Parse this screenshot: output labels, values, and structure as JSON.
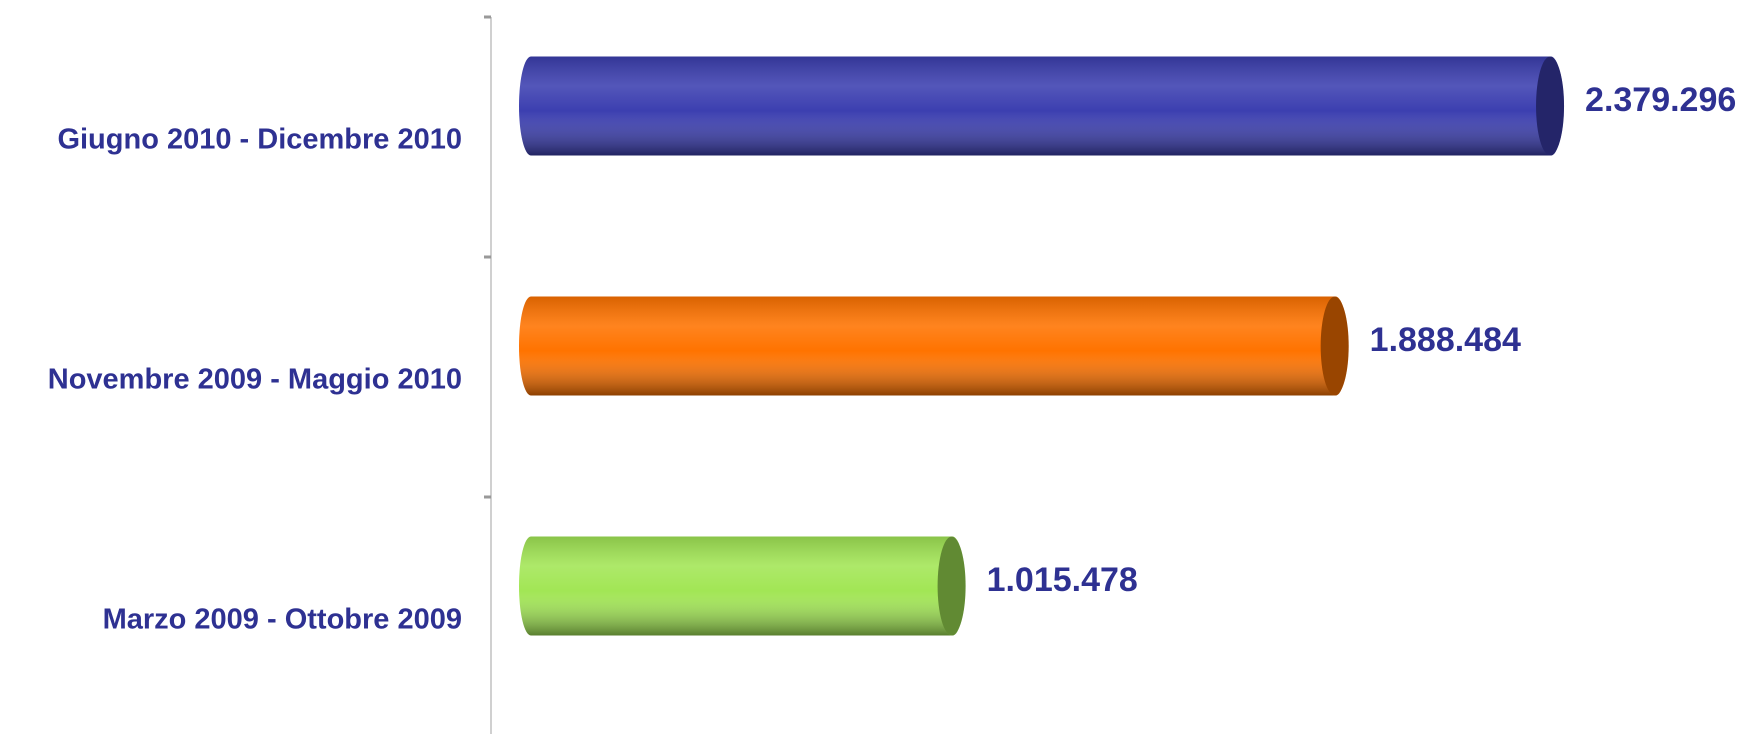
{
  "chart_data": {
    "type": "bar",
    "orientation": "horizontal",
    "categories": [
      "Giugno 2010 - Dicembre 2010",
      "Novembre 2009 - Maggio 2010",
      "Marzo 2009 - Ottobre 2009"
    ],
    "values": [
      2379296,
      1888484,
      1015478
    ],
    "value_labels": [
      "2.379.296",
      "1.888.484",
      "1.015.478"
    ],
    "colors": [
      "#3c3fb0",
      "#ff7300",
      "#a2e655"
    ],
    "xlim": [
      0,
      2500000
    ]
  }
}
